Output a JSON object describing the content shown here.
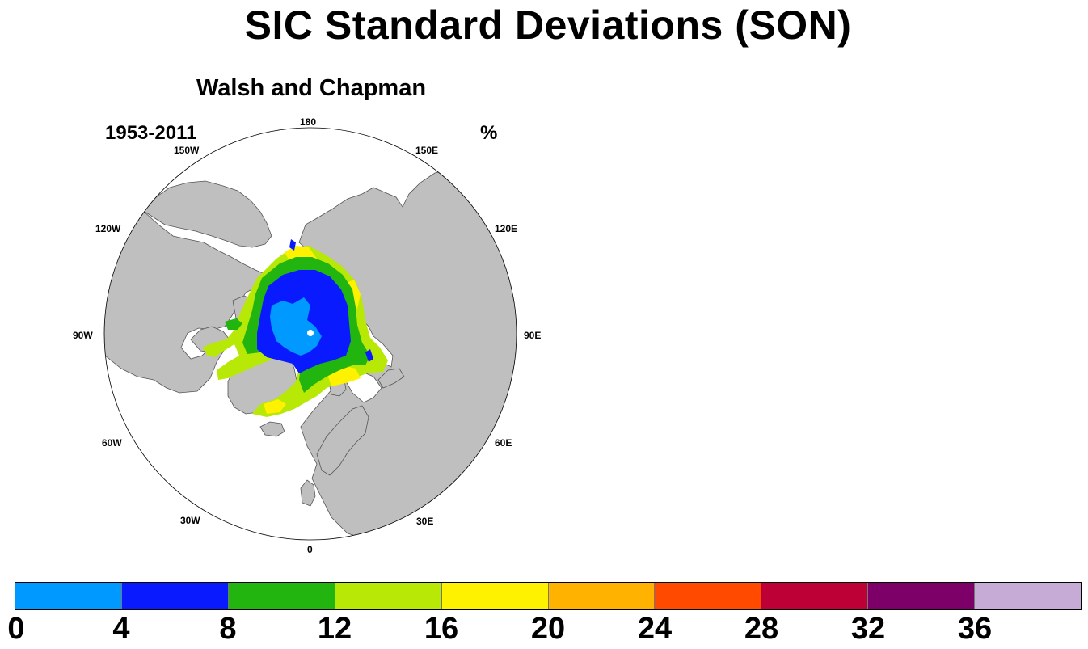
{
  "title": "SIC Standard Deviations (SON)",
  "panel": {
    "subtitle": "Walsh and Chapman",
    "period": "1953-2011",
    "units": "%"
  },
  "longitude_labels": [
    {
      "name": "lon-label-180",
      "text": "180"
    },
    {
      "name": "lon-label-150e",
      "text": "150E"
    },
    {
      "name": "lon-label-120e",
      "text": "120E"
    },
    {
      "name": "lon-label-90e",
      "text": "90E"
    },
    {
      "name": "lon-label-60e",
      "text": "60E"
    },
    {
      "name": "lon-label-30e",
      "text": "30E"
    },
    {
      "name": "lon-label-0",
      "text": "0"
    },
    {
      "name": "lon-label-30w",
      "text": "30W"
    },
    {
      "name": "lon-label-60w",
      "text": "60W"
    },
    {
      "name": "lon-label-90w",
      "text": "90W"
    },
    {
      "name": "lon-label-120w",
      "text": "120W"
    },
    {
      "name": "lon-label-150w",
      "text": "150W"
    }
  ],
  "colors": {
    "ocean": "#ffffff",
    "land": "#bfbfbf",
    "coast": "#555555"
  },
  "legend": {
    "colors": [
      "#0099ff",
      "#0a1aff",
      "#22b40f",
      "#b8e806",
      "#fff200",
      "#ffb300",
      "#ff4a00",
      "#bd0035",
      "#7d0069",
      "#c6abd6"
    ],
    "ticks": [
      "0",
      "4",
      "8",
      "12",
      "16",
      "20",
      "24",
      "28",
      "32",
      "36"
    ]
  }
}
